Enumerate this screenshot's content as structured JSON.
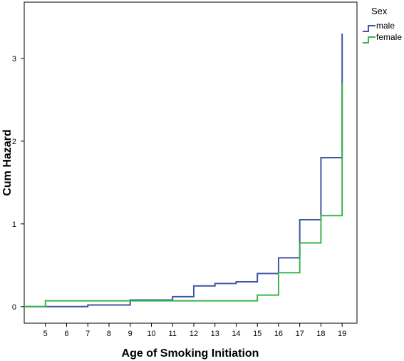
{
  "chart_data": {
    "type": "line",
    "step": true,
    "xlabel": "Age of Smoking Initiation",
    "ylabel": "Cum Hazard",
    "xlim": [
      4,
      19.7
    ],
    "ylim": [
      -0.2,
      3.68
    ],
    "x_ticks": [
      5,
      6,
      7,
      8,
      9,
      10,
      11,
      12,
      13,
      14,
      15,
      16,
      17,
      18,
      19
    ],
    "y_ticks": [
      0,
      1,
      2,
      3
    ],
    "grid": false,
    "legend": {
      "title": "Sex",
      "placement": "right-outside-top"
    },
    "series": [
      {
        "name": "male",
        "color": "#3f56a6",
        "x": [
          4,
          7,
          9,
          11,
          12,
          13,
          14,
          15,
          16,
          17,
          18,
          19,
          19
        ],
        "y": [
          0.0,
          0.02,
          0.08,
          0.12,
          0.25,
          0.28,
          0.3,
          0.4,
          0.59,
          1.05,
          1.8,
          1.8,
          3.3
        ]
      },
      {
        "name": "female",
        "color": "#3ab54a",
        "x": [
          4,
          5,
          15,
          16,
          17,
          18,
          19,
          19
        ],
        "y": [
          0.0,
          0.07,
          0.14,
          0.41,
          0.77,
          1.1,
          1.1,
          2.7
        ]
      }
    ]
  }
}
